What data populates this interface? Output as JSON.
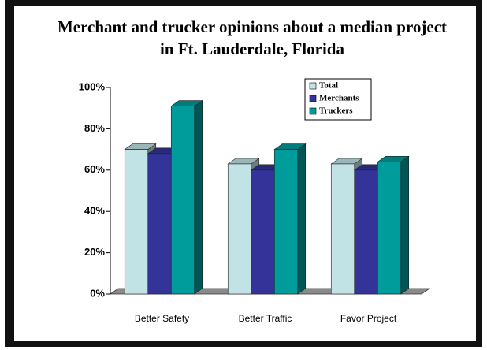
{
  "chart_data": {
    "type": "bar3d",
    "title": "Merchant and trucker opinions about a median project in Ft. Lauderdale, Florida",
    "categories": [
      "Better Safety",
      "Better Traffic",
      "Favor Project"
    ],
    "series": [
      {
        "name": "Total",
        "color": "#c2e3e6",
        "values": [
          70,
          63,
          63
        ]
      },
      {
        "name": "Merchants",
        "color": "#333399",
        "values": [
          68,
          60,
          60
        ]
      },
      {
        "name": "Truckers",
        "color": "#009b9b",
        "values": [
          91,
          70,
          64
        ]
      }
    ],
    "ylim": [
      0,
      100
    ],
    "yticks": [
      {
        "value": 0,
        "label": "0%"
      },
      {
        "value": 20,
        "label": "20%"
      },
      {
        "value": 40,
        "label": "40%"
      },
      {
        "value": 60,
        "label": "60%"
      },
      {
        "value": 80,
        "label": "80%"
      },
      {
        "value": 100,
        "label": "100%"
      }
    ],
    "legend": "upper right"
  }
}
